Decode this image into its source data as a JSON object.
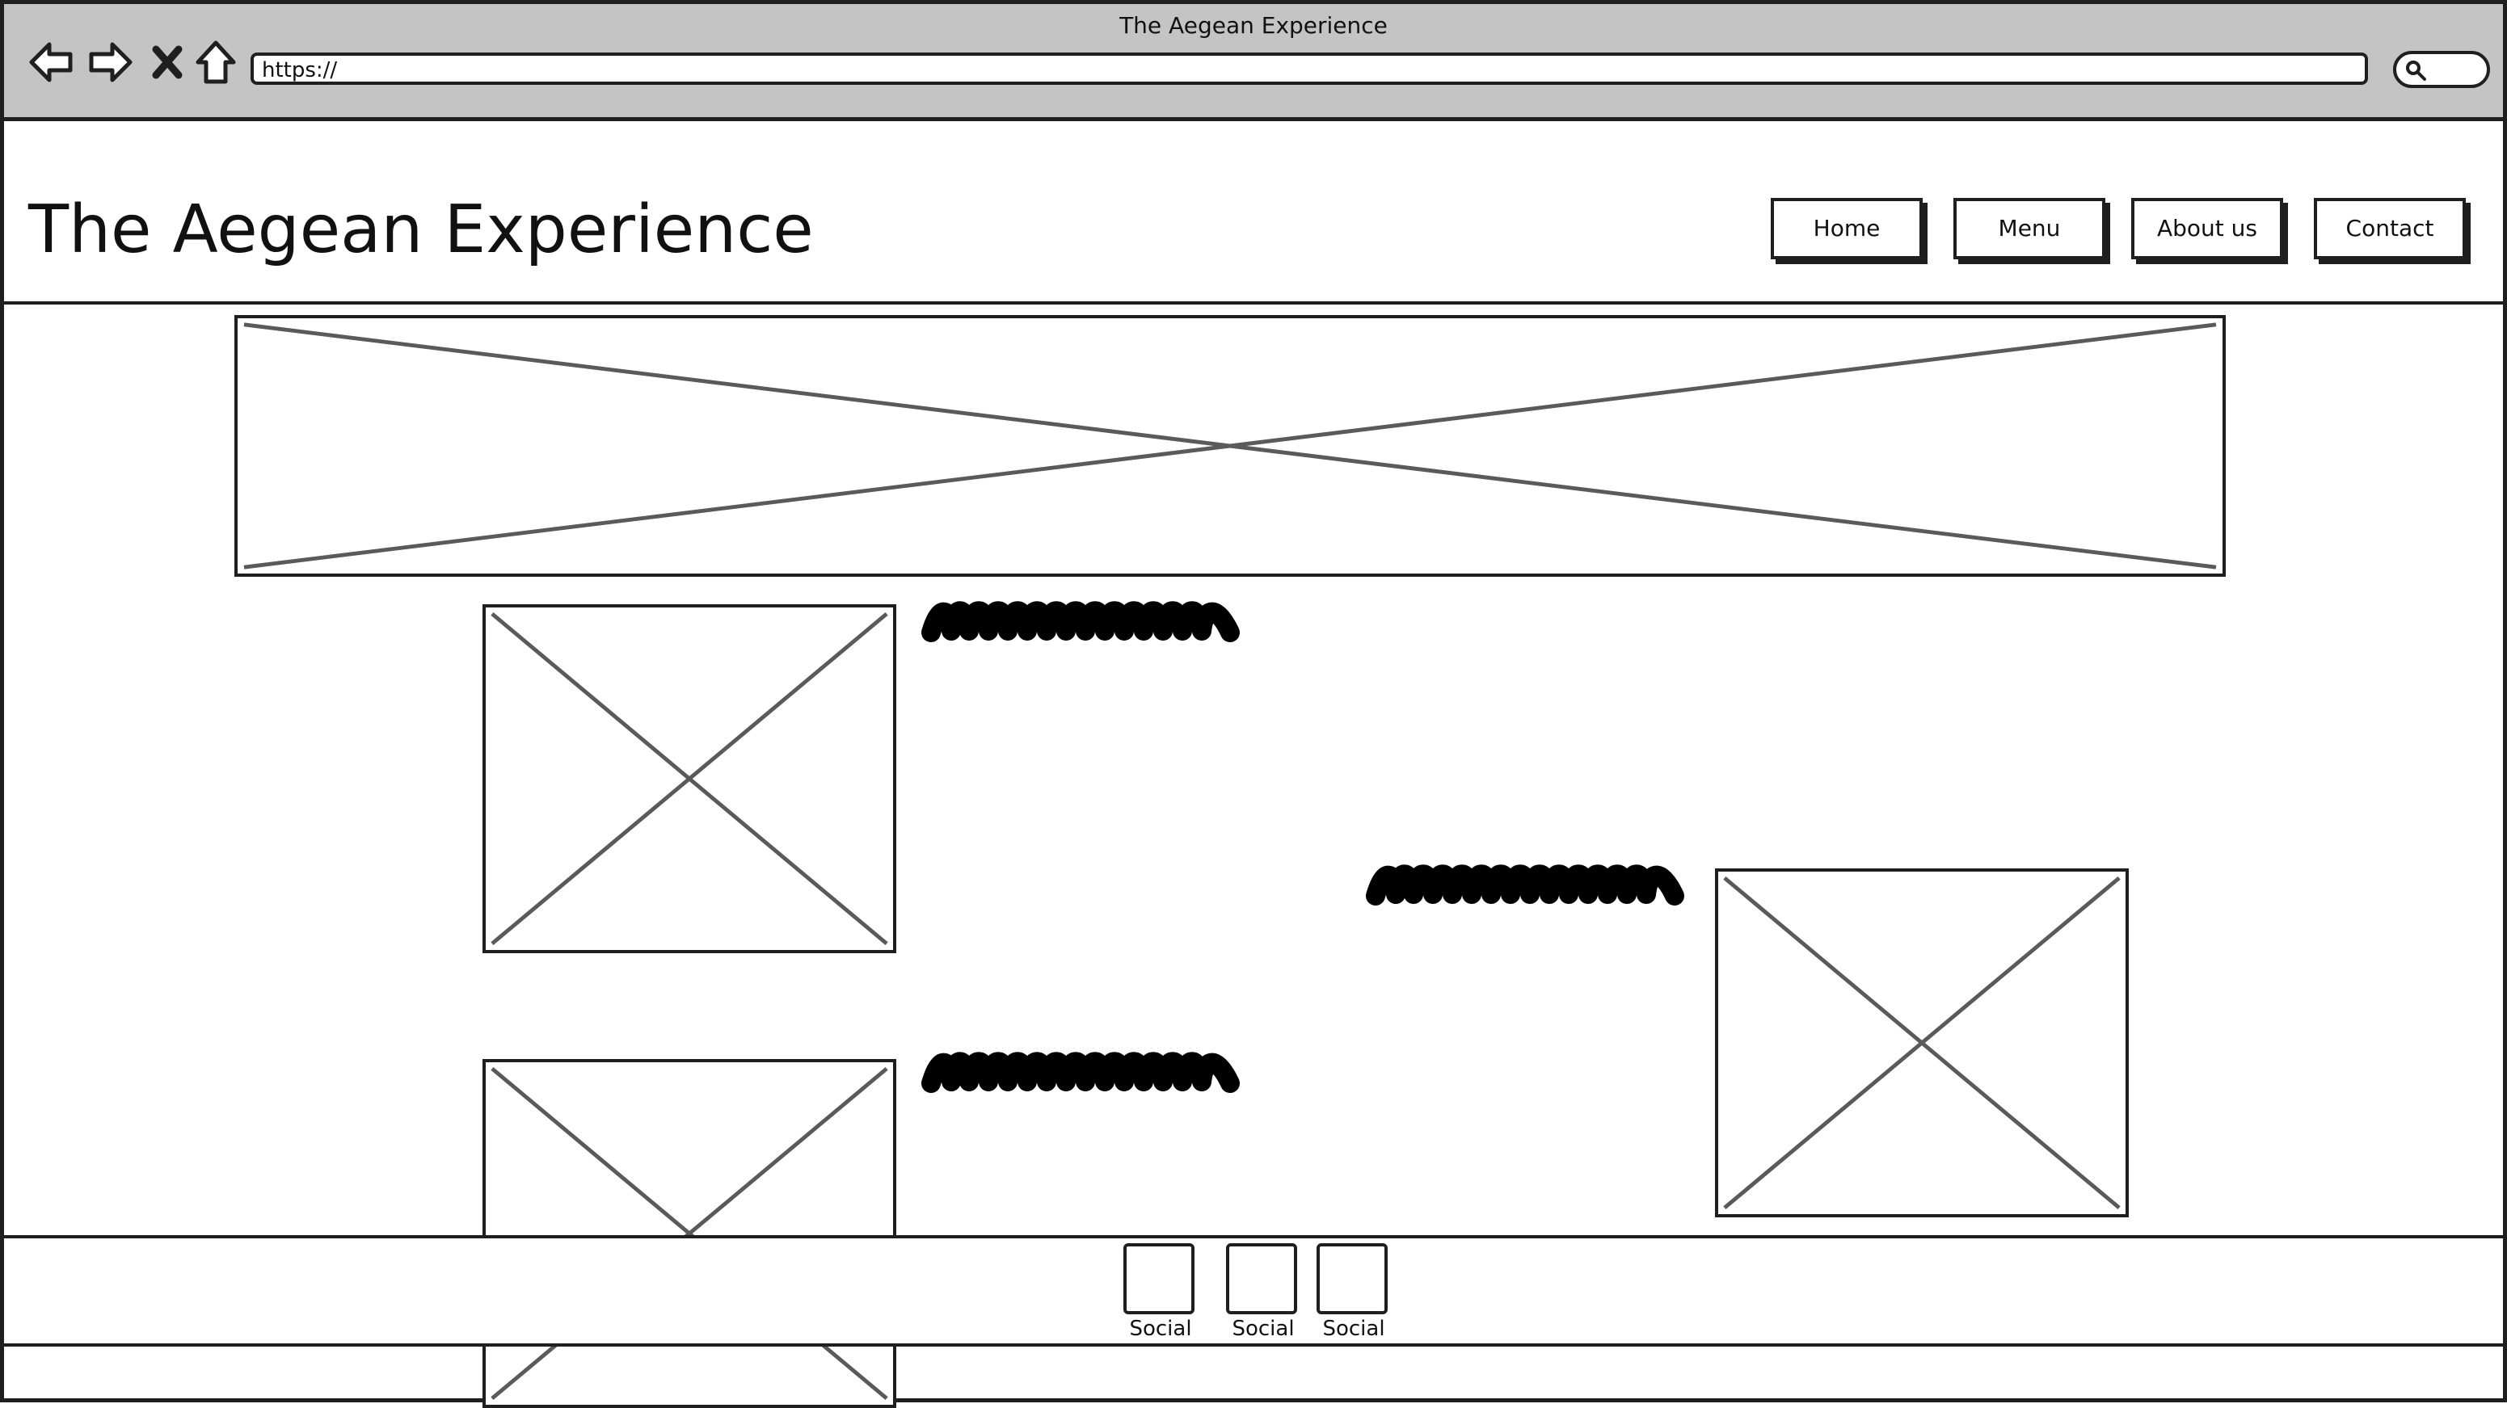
{
  "window": {
    "title": "The Aegean Experience"
  },
  "toolbar": {
    "nav_icons": [
      "back-arrow-icon",
      "forward-arrow-icon",
      "close-x-icon",
      "home-icon"
    ],
    "url": "https://",
    "search_icon": "search-icon"
  },
  "header": {
    "site_title": "The Aegean Experience",
    "nav": [
      {
        "label": "Home"
      },
      {
        "label": "Menu"
      },
      {
        "label": "About us"
      },
      {
        "label": "Contact"
      }
    ]
  },
  "footer": {
    "socials": [
      {
        "label": "Social"
      },
      {
        "label": "Social"
      },
      {
        "label": "Social"
      }
    ]
  },
  "colors": {
    "chrome_background": "#c4c4c4",
    "frame_stroke": "#1f1f1f",
    "placeholder_stroke": "#5a5a5a"
  }
}
